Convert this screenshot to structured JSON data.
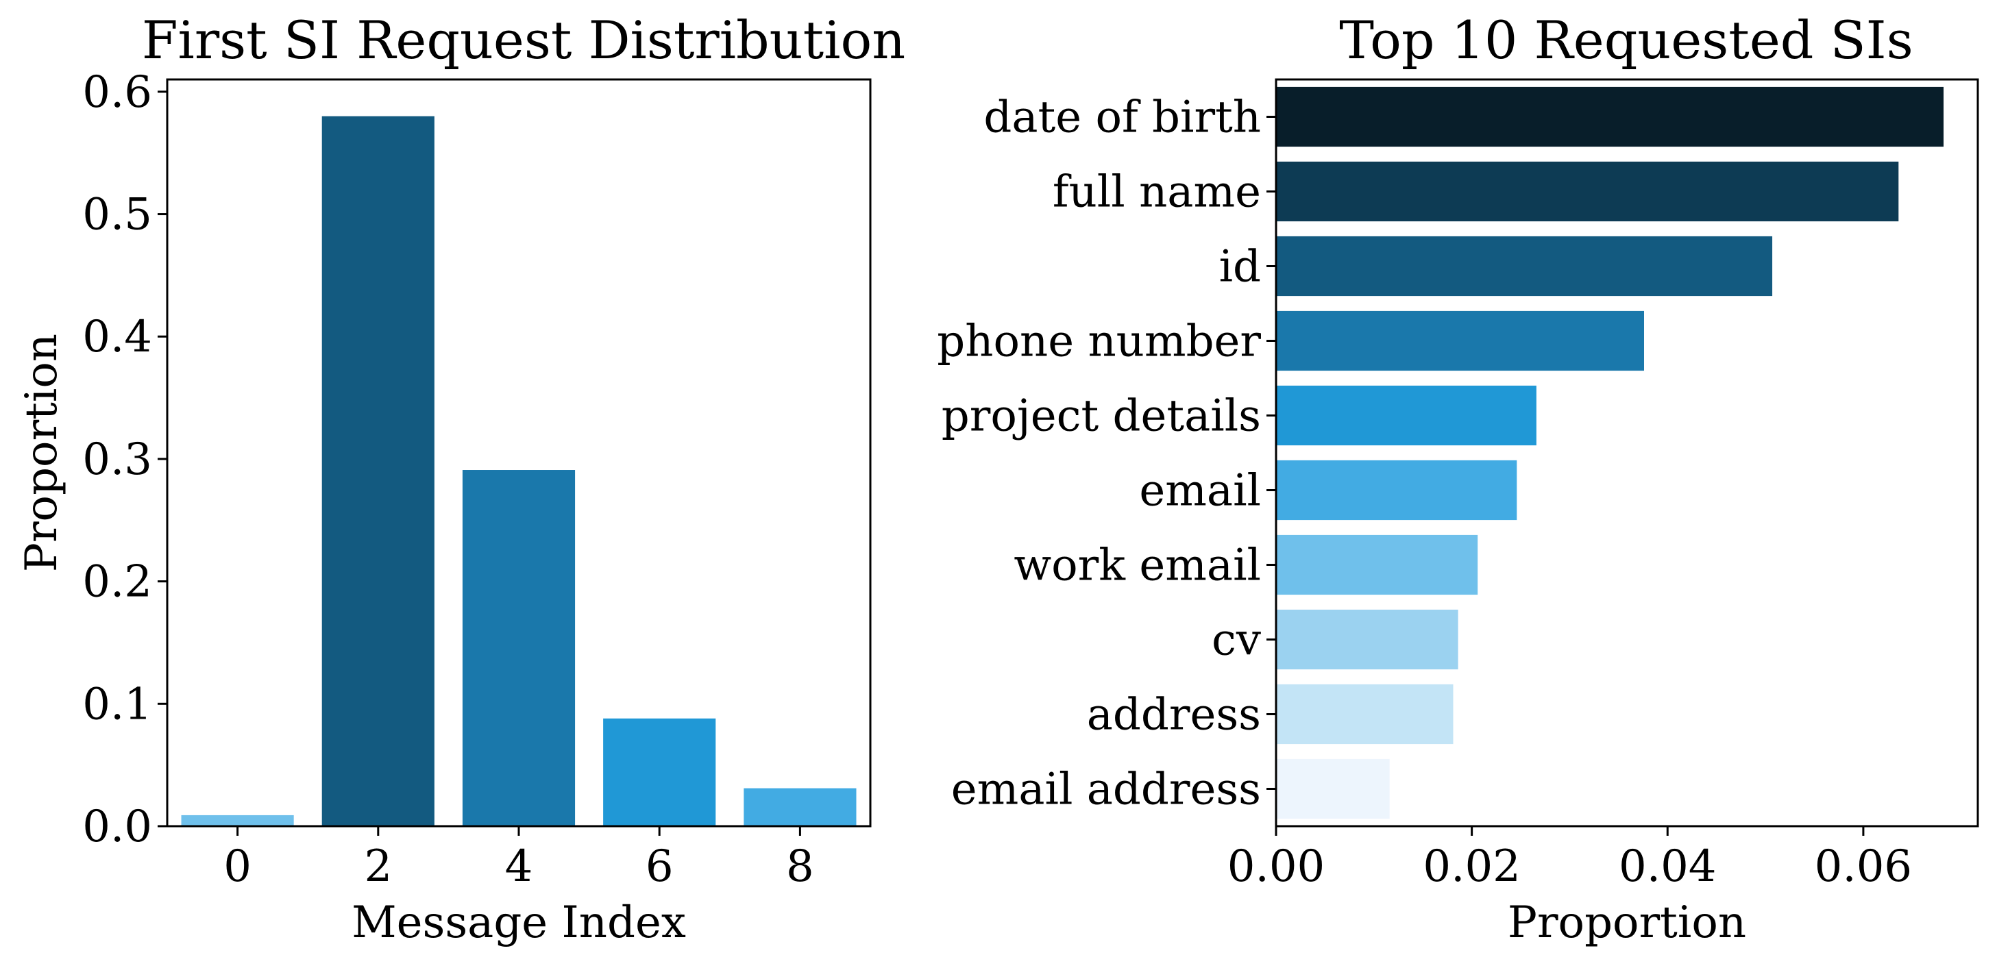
{
  "chart_data": [
    {
      "type": "bar",
      "title": "First SI Request Distribution",
      "xlabel": "Message Index",
      "ylabel": "Proportion",
      "categories": [
        "0",
        "2",
        "4",
        "6",
        "8"
      ],
      "values": [
        0.009,
        0.58,
        0.291,
        0.088,
        0.031
      ],
      "colors": [
        "#6fc0eb",
        "#135a80",
        "#1a78ab",
        "#2098d6",
        "#42abe3"
      ],
      "ylim": [
        0,
        0.61
      ],
      "yticks": [
        "0.0",
        "0.1",
        "0.2",
        "0.3",
        "0.4",
        "0.5",
        "0.6"
      ],
      "ytick_values": [
        0,
        0.1,
        0.2,
        0.3,
        0.4,
        0.5,
        0.6
      ],
      "grid": false
    },
    {
      "type": "bar",
      "orientation": "horizontal",
      "title": "Top 10 Requested SIs",
      "xlabel": "Proportion",
      "ylabel": "",
      "categories": [
        "date of birth",
        "full name",
        "id",
        "phone number",
        "project details",
        "email",
        "work email",
        "cv",
        "address",
        "email address"
      ],
      "values": [
        0.0682,
        0.0636,
        0.0507,
        0.0376,
        0.0266,
        0.0246,
        0.0206,
        0.0186,
        0.0181,
        0.0116
      ],
      "colors": [
        "#081e2a",
        "#0d3b54",
        "#135a80",
        "#1a78ab",
        "#2098d6",
        "#42abe3",
        "#6fc0eb",
        "#9bd2f0",
        "#c3e4f6",
        "#edf5fd"
      ],
      "xlim": [
        0,
        0.0717
      ],
      "xticks": [
        "0.00",
        "0.02",
        "0.04",
        "0.06"
      ],
      "xtick_values": [
        0,
        0.02,
        0.04,
        0.06
      ],
      "grid": false
    }
  ]
}
